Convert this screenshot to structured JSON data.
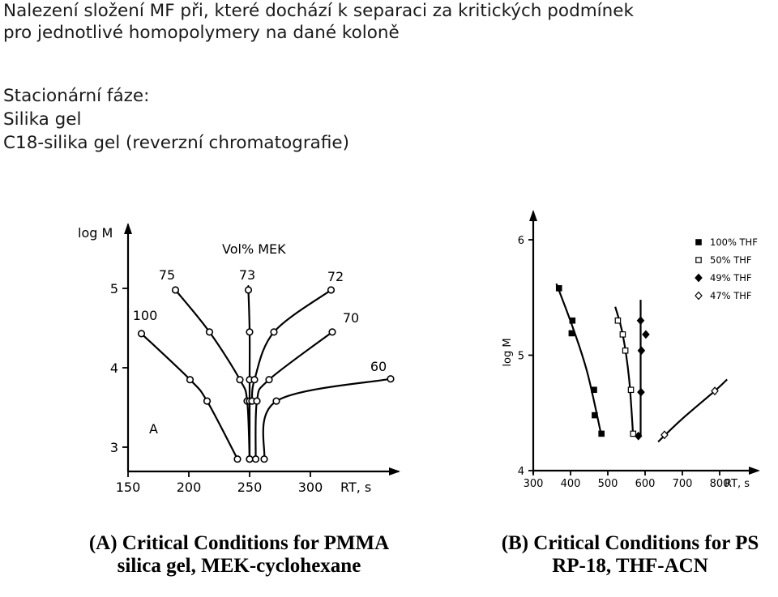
{
  "slide": {
    "title_line1": "Nalezení složení MF při, které dochází k separaci za kritických podmínek",
    "title_line2": "pro jednotlivé homopolymery na dané koloně",
    "phase_heading": "Stacionární fáze:",
    "phase_1": "Silika gel",
    "phase_2": "C18-silika gel (reverzní chromatografie)"
  },
  "captions": {
    "a_line1": "(A) Critical Conditions for PMMA",
    "a_line2": "silica gel, MEK-cyclohexane",
    "b_line1": "(B) Critical Conditions for PS",
    "b_line2": "RP-18, THF-ACN"
  },
  "chart_data": [
    {
      "type": "line",
      "panel_label": "A",
      "legend_title": "Vol% MEK",
      "xlabel": "RT, s",
      "ylabel": "log M",
      "xlim": [
        150,
        325
      ],
      "ylim": [
        2.7,
        5.7
      ],
      "xticks": [
        150,
        200,
        250,
        300
      ],
      "yticks": [
        3,
        4,
        5
      ],
      "grid": false,
      "series": [
        {
          "name": "100",
          "points": [
            [
              161,
              4.43
            ],
            [
              201,
              3.85
            ],
            [
              215,
              3.58
            ],
            [
              240,
              2.85
            ]
          ]
        },
        {
          "name": "75",
          "points": [
            [
              189,
              4.98
            ],
            [
              217,
              4.45
            ],
            [
              242,
              3.85
            ],
            [
              248,
              3.58
            ],
            [
              250,
              2.85
            ]
          ]
        },
        {
          "name": "73",
          "points": [
            [
              249,
              4.98
            ],
            [
              250,
              4.45
            ],
            [
              250,
              3.85
            ],
            [
              250,
              3.58
            ],
            [
              250,
              2.85
            ]
          ]
        },
        {
          "name": "72",
          "points": [
            [
              252,
              3.58
            ],
            [
              254,
              3.85
            ],
            [
              270,
              4.45
            ],
            [
              317,
              4.98
            ]
          ]
        },
        {
          "name": "70",
          "points": [
            [
              255,
              2.85
            ],
            [
              256,
              3.58
            ],
            [
              266,
              3.85
            ],
            [
              318,
              4.45
            ]
          ]
        },
        {
          "name": "60",
          "points": [
            [
              262,
              2.85
            ],
            [
              272,
              3.58
            ],
            [
              366,
              3.86
            ]
          ]
        }
      ]
    },
    {
      "type": "scatter",
      "xlabel": "RT, s",
      "ylabel": "log M",
      "xlim": [
        300,
        850
      ],
      "ylim": [
        4.0,
        6.0
      ],
      "xticks": [
        300,
        400,
        500,
        600,
        700,
        800
      ],
      "yticks": [
        4,
        5,
        6
      ],
      "grid": false,
      "legend_position": "top-right",
      "series": [
        {
          "name": "100% THF",
          "marker": "square-filled",
          "points": [
            [
              369,
              5.58
            ],
            [
              405,
              5.3
            ],
            [
              403,
              5.19
            ],
            [
              463,
              4.7
            ],
            [
              465,
              4.48
            ],
            [
              483,
              4.32
            ]
          ]
        },
        {
          "name": "50% THF",
          "marker": "square-open",
          "points": [
            [
              527,
              5.3
            ],
            [
              540,
              5.18
            ],
            [
              547,
              5.04
            ],
            [
              562,
              4.7
            ],
            [
              568,
              4.32
            ]
          ]
        },
        {
          "name": "49% THF",
          "marker": "diamond-filled",
          "points": [
            [
              588,
              5.3
            ],
            [
              590,
              5.04
            ],
            [
              602,
              5.18
            ],
            [
              589,
              4.68
            ],
            [
              582,
              4.3
            ]
          ]
        },
        {
          "name": "47% THF",
          "marker": "diamond-open",
          "points": [
            [
              652,
              4.31
            ],
            [
              787,
              4.69
            ]
          ]
        }
      ]
    }
  ]
}
